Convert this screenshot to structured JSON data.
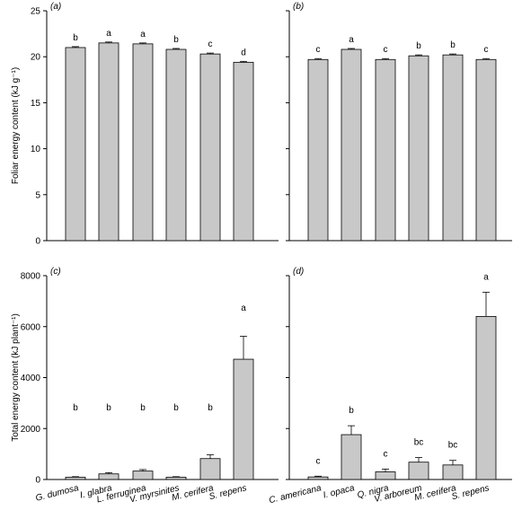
{
  "chart_data": [
    {
      "type": "bar",
      "panel": "(a)",
      "ylabel": "Foliar energy content (kJ g⁻¹)",
      "ylim": [
        0,
        25
      ],
      "yticks": [
        0,
        5,
        10,
        15,
        20,
        25
      ],
      "categories": [
        "G. dumosa",
        "I. glabra",
        "L. ferruginea",
        "V. myrsinites",
        "M. cerifera",
        "S. repens"
      ],
      "values": [
        21.0,
        21.5,
        21.4,
        20.8,
        20.3,
        19.4
      ],
      "errors": [
        0.1,
        0.1,
        0.1,
        0.1,
        0.1,
        0.1
      ],
      "letters": [
        "b",
        "a",
        "a",
        "b",
        "c",
        "d"
      ],
      "show_category_labels": false,
      "show_y_ticks": true
    },
    {
      "type": "bar",
      "panel": "(b)",
      "ylim": [
        0,
        25
      ],
      "yticks": [
        0,
        5,
        10,
        15,
        20,
        25
      ],
      "categories": [
        "C. americana",
        "I. opaca",
        "Q. nigra",
        "V. arboreum",
        "M. cerifera",
        "S. repens"
      ],
      "values": [
        19.7,
        20.8,
        19.7,
        20.1,
        20.2,
        19.7
      ],
      "errors": [
        0.1,
        0.1,
        0.1,
        0.1,
        0.1,
        0.1
      ],
      "letters": [
        "c",
        "a",
        "c",
        "b",
        "b",
        "c"
      ],
      "show_category_labels": false,
      "show_y_ticks": false
    },
    {
      "type": "bar",
      "panel": "(c)",
      "ylabel": "Total energy content (kJ plant⁻¹)",
      "ylim": [
        0,
        8000
      ],
      "yticks": [
        0,
        2000,
        4000,
        6000,
        8000
      ],
      "categories": [
        "G. dumosa",
        "I. glabra",
        "L. ferruginea",
        "V. myrsinites",
        "M. cerifera",
        "S. repens"
      ],
      "values": [
        90,
        220,
        330,
        90,
        820,
        4720
      ],
      "errors": [
        20,
        50,
        60,
        20,
        150,
        900
      ],
      "letters": [
        "b",
        "b",
        "b",
        "b",
        "b",
        "a"
      ],
      "show_category_labels": true,
      "show_y_ticks": true
    },
    {
      "type": "bar",
      "panel": "(d)",
      "ylim": [
        0,
        8000
      ],
      "yticks": [
        0,
        2000,
        4000,
        6000,
        8000
      ],
      "categories": [
        "C. americana",
        "I. opaca",
        "Q. nigra",
        "V. arboreum",
        "M. cerifera",
        "S. repens"
      ],
      "values": [
        100,
        1760,
        300,
        680,
        570,
        6400
      ],
      "errors": [
        30,
        350,
        110,
        180,
        180,
        950
      ],
      "letters": [
        "c",
        "b",
        "c",
        "bc",
        "bc",
        "a"
      ],
      "show_category_labels": true,
      "show_y_ticks": false
    }
  ],
  "colors": {
    "bar_fill": "#c8c8c8",
    "bar_stroke": "#000000",
    "axis": "#000000"
  }
}
